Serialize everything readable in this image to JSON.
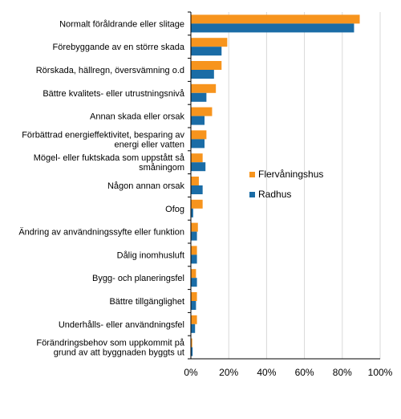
{
  "chart_data": {
    "type": "bar",
    "orientation": "horizontal",
    "categories": [
      "Normalt föråldrande eller slitage",
      "Förebyggande av en större skada",
      "Rörskada, hällregn, översvämning o.d",
      "Bättre kvalitets- eller utrustningsnivå",
      "Annan skada eller orsak",
      "Förbättrad energieffektivitet, besparing av energi eller vatten",
      "Mögel- eller fuktskada som uppstått så småningom",
      "Någon annan orsak",
      "Ofog",
      "Ändring av användningssyfte eller funktion",
      "Dålig inomhusluft",
      "Bygg- och planeringsfel",
      "Bättre tillgänglighet",
      "Underhålls- eller användningsfel",
      "Förändringsbehov som uppkommit på grund av att byggnaden byggts ut"
    ],
    "category_lines": [
      [
        "Normalt föråldrande eller slitage"
      ],
      [
        "Förebyggande av en större skada"
      ],
      [
        "Rörskada, hällregn, översvämning o.d"
      ],
      [
        "Bättre kvalitets- eller utrustningsnivå"
      ],
      [
        "Annan skada eller orsak"
      ],
      [
        "Förbättrad energieffektivitet, besparing av",
        "energi eller vatten"
      ],
      [
        "Mögel- eller fuktskada som uppstått så",
        "småningom"
      ],
      [
        "Någon annan orsak"
      ],
      [
        "Ofog"
      ],
      [
        "Ändring av användningssyfte eller funktion"
      ],
      [
        "Dålig inomhusluft"
      ],
      [
        "Bygg- och planeringsfel"
      ],
      [
        "Bättre tillgänglighet"
      ],
      [
        "Underhålls- eller användningsfel"
      ],
      [
        "Förändringsbehov som uppkommit på",
        "grund av att byggnaden byggts ut"
      ]
    ],
    "series": [
      {
        "name": "Flervåningshus",
        "color": "#f7941d",
        "values": [
          89,
          19,
          16,
          13,
          11,
          8,
          6,
          4,
          6,
          3.5,
          3,
          2.5,
          3,
          3,
          0.5
        ]
      },
      {
        "name": "Radhus",
        "color": "#1a6ca6",
        "values": [
          86,
          16,
          12,
          8,
          7,
          7,
          7.5,
          6,
          1,
          3,
          3,
          3,
          2.5,
          2,
          0.7
        ]
      }
    ],
    "xlim": [
      0,
      100
    ],
    "xticks": [
      "0%",
      "20%",
      "40%",
      "60%",
      "80%",
      "100%"
    ],
    "title": "",
    "xlabel": "",
    "ylabel": "",
    "grid": true,
    "legend_position": "right"
  }
}
